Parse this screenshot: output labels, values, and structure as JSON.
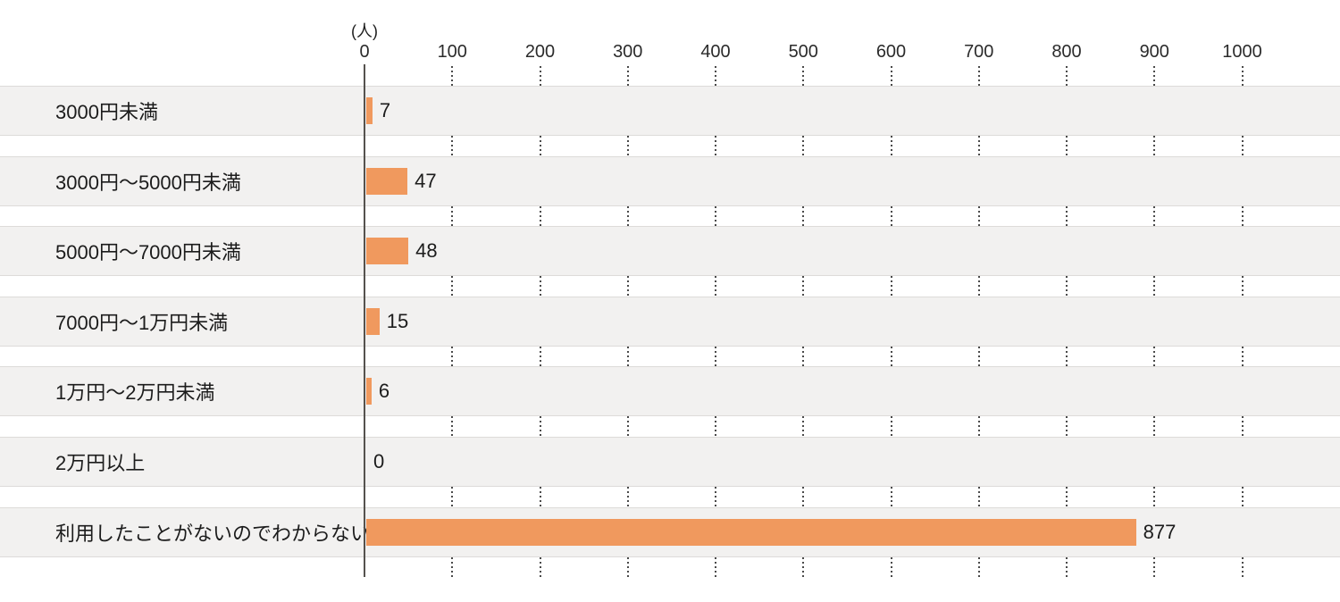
{
  "chart_data": {
    "type": "bar",
    "orientation": "horizontal",
    "title": "",
    "xlabel": "",
    "ylabel": "",
    "unit_label": "(人)",
    "categories": [
      "3000円未満",
      "3000円〜5000円未満",
      "5000円〜7000円未満",
      "7000円〜1万円未満",
      "1万円〜2万円未満",
      "2万円以上",
      "利用したことがないのでわからない"
    ],
    "values": [
      7,
      47,
      48,
      15,
      6,
      0,
      877
    ],
    "x_ticks": [
      0,
      100,
      200,
      300,
      400,
      500,
      600,
      700,
      800,
      900,
      1000
    ],
    "xlim": [
      0,
      1100
    ],
    "grid": "dotted-vertical-lines-at-ticks-in-row-gaps",
    "legend": "none",
    "colors": {
      "bar": "#F0995E",
      "row_band": "#F2F1F0",
      "band_border": "#DDDBD9",
      "axis_line": "#55524E",
      "grid_dot": "#4A4A4A",
      "text": "#1C1C1C",
      "tick_text": "#2B2B2B"
    }
  }
}
